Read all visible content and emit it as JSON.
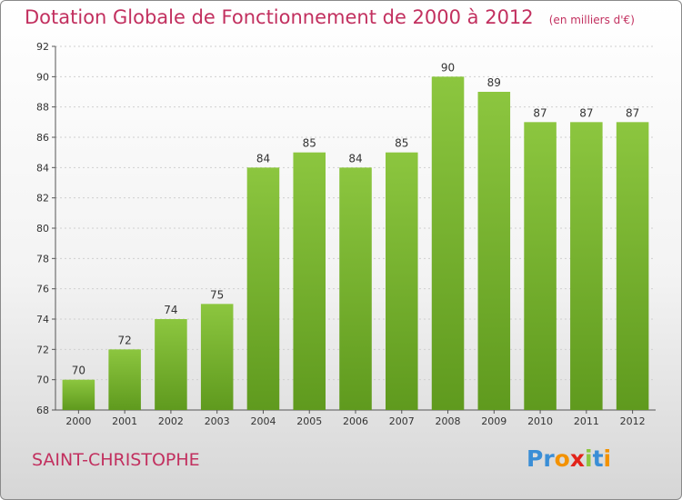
{
  "chart_data": {
    "type": "bar",
    "title": "Dotation Globale de Fonctionnement de 2000 à 2012",
    "subtitle": "(en milliers d'€)",
    "categories": [
      "2000",
      "2001",
      "2002",
      "2003",
      "2004",
      "2005",
      "2006",
      "2007",
      "2008",
      "2009",
      "2010",
      "2011",
      "2012"
    ],
    "values": [
      70,
      72,
      74,
      75,
      84,
      85,
      84,
      85,
      90,
      89,
      87,
      87,
      87
    ],
    "ylim": [
      68,
      92
    ],
    "yticks": [
      68,
      70,
      72,
      74,
      76,
      78,
      80,
      82,
      84,
      86,
      88,
      90,
      92
    ],
    "grid": true,
    "bar_color": "#8cc63f",
    "bar_color_dark": "#5f9a1e"
  },
  "footer": {
    "commune": "SAINT-CHRISTOPHE",
    "logo_letters": [
      "P",
      "r",
      "o",
      "x",
      "i",
      "t",
      "i"
    ],
    "logo_colors": [
      "#3a8ed6",
      "#3a8ed6",
      "#f39200",
      "#e2231a",
      "#8cc63f",
      "#3a8ed6",
      "#f39200"
    ]
  }
}
